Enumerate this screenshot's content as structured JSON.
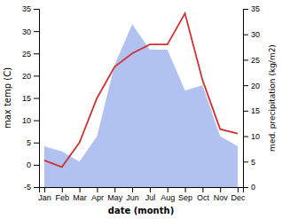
{
  "chart_data": {
    "type": "line",
    "categories": [
      "Jan",
      "Feb",
      "Mar",
      "Apr",
      "May",
      "Jun",
      "Jul",
      "Aug",
      "Sep",
      "Oct",
      "Nov",
      "Dec"
    ],
    "xlabel": "date (month)",
    "ylabel": "max temp (C)",
    "y2label": "med. precipitation (kg/m2)",
    "ylim": [
      -5,
      35
    ],
    "yticks": [
      -5,
      0,
      5,
      10,
      15,
      20,
      25,
      30,
      35
    ],
    "y2lim": [
      0,
      35
    ],
    "y2ticks": [
      0,
      5,
      10,
      15,
      20,
      25,
      30,
      35
    ],
    "grid": false,
    "series": [
      {
        "type": "area",
        "axis": "y2",
        "color": "#aabbee",
        "values": [
          8,
          7,
          5,
          10,
          24,
          32,
          27,
          27,
          19,
          20,
          10,
          8
        ]
      },
      {
        "type": "line",
        "color": "#cc3333",
        "values": [
          1,
          -0.5,
          5,
          15,
          22,
          25,
          27,
          27,
          34,
          19,
          8,
          7
        ]
      }
    ]
  }
}
